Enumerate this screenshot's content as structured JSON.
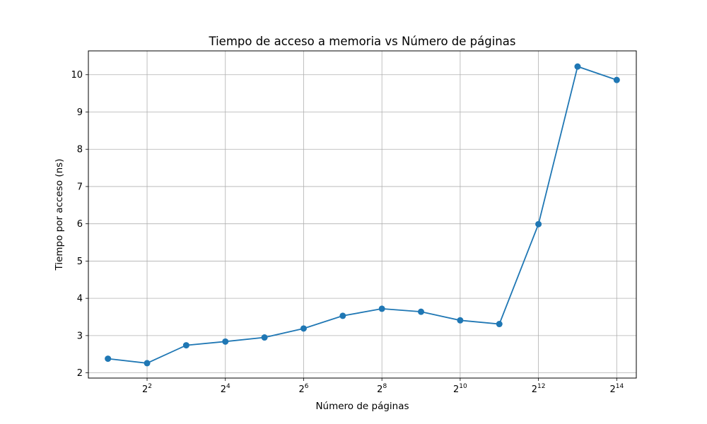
{
  "chart_data": {
    "type": "line",
    "title": "Tiempo de acceso a memoria vs Número de páginas",
    "xlabel": "Número de páginas",
    "ylabel": "Tiempo por acceso (ns)",
    "x_scale": "log2",
    "x": [
      2,
      4,
      8,
      16,
      32,
      64,
      128,
      256,
      512,
      1024,
      2048,
      4096,
      8192,
      16384
    ],
    "series": [
      {
        "values": [
          2.38,
          2.26,
          2.74,
          2.84,
          2.95,
          3.19,
          3.53,
          3.72,
          3.64,
          3.41,
          3.31,
          5.99,
          10.22,
          9.86
        ],
        "color": "#1f77b4",
        "marker": "circle"
      }
    ],
    "xticks": [
      {
        "value": 4,
        "base": "2",
        "exp": "2"
      },
      {
        "value": 16,
        "base": "2",
        "exp": "4"
      },
      {
        "value": 64,
        "base": "2",
        "exp": "6"
      },
      {
        "value": 256,
        "base": "2",
        "exp": "8"
      },
      {
        "value": 1024,
        "base": "2",
        "exp": "10"
      },
      {
        "value": 4096,
        "base": "2",
        "exp": "12"
      },
      {
        "value": 16384,
        "base": "2",
        "exp": "14"
      }
    ],
    "yticks": [
      2,
      3,
      4,
      5,
      6,
      7,
      8,
      9,
      10
    ],
    "ylim": [
      1.86,
      10.64
    ],
    "xlim_log2": [
      0.5,
      14.5
    ],
    "grid": true
  }
}
